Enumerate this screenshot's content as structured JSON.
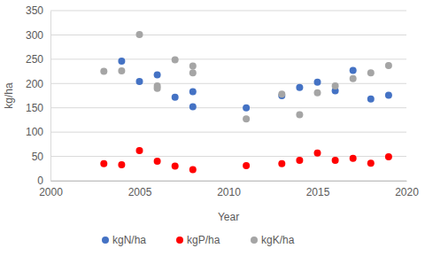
{
  "chart_data": {
    "type": "scatter",
    "x_label": "Year",
    "y_label": "kg/ha",
    "x": [
      2003,
      2004,
      2005,
      2006,
      2006,
      2007,
      2008,
      2008,
      2011,
      2013,
      2014,
      2015,
      2016,
      2017,
      2018,
      2019
    ],
    "series": [
      {
        "name": "kgN/ha",
        "color": "#4472c4",
        "marker": "circle",
        "values": [
          null,
          246,
          204,
          218,
          null,
          172,
          183,
          152,
          150,
          175,
          192,
          203,
          185,
          227,
          168,
          176
        ]
      },
      {
        "name": "kgP/ha",
        "color": "#ff0000",
        "marker": "circle",
        "values": [
          35,
          33,
          62,
          40,
          null,
          30,
          23,
          null,
          31,
          35,
          42,
          57,
          42,
          46,
          36,
          49
        ]
      },
      {
        "name": "kgK/ha",
        "color": "#a5a5a5",
        "marker": "circle",
        "values": [
          225,
          226,
          301,
          195,
          190,
          249,
          236,
          222,
          127,
          178,
          136,
          181,
          195,
          210,
          222,
          237
        ]
      }
    ],
    "xlim": [
      2000,
      2020
    ],
    "xticks": [
      2000,
      2005,
      2010,
      2015,
      2020
    ],
    "ylim": [
      0,
      350
    ],
    "yticks": [
      0,
      50,
      100,
      150,
      200,
      250,
      300,
      350
    ],
    "grid": true,
    "legend": "bottom"
  }
}
